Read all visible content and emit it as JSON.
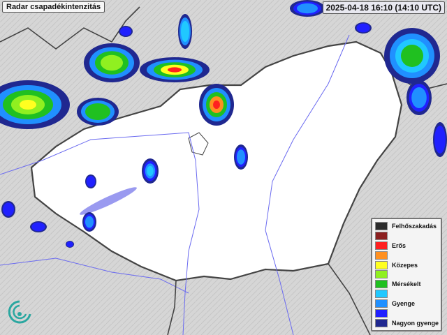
{
  "title": "Radar csapadékintenzitás",
  "timestamp": "2025-04-18 16:10 (14:10 UTC)",
  "legend": [
    {
      "label": "Felhőszakadás",
      "color": "#2b2b2b"
    },
    {
      "label": "",
      "color": "#8b2020"
    },
    {
      "label": "Erős",
      "color": "#ff2020"
    },
    {
      "label": "",
      "color": "#ff9020"
    },
    {
      "label": "Közepes",
      "color": "#ffff20"
    },
    {
      "label": "",
      "color": "#90f020"
    },
    {
      "label": "Mérsékelt",
      "color": "#20c020"
    },
    {
      "label": "",
      "color": "#20c8ff"
    },
    {
      "label": "Gyenge",
      "color": "#2090ff"
    },
    {
      "label": "",
      "color": "#2020ff"
    },
    {
      "label": "Nagyon gyenge",
      "color": "#202890"
    }
  ],
  "colors": {
    "land": "#ffffff",
    "background": "#d8d8d8",
    "rivers": "#6a6af0",
    "borders": "#444444"
  }
}
